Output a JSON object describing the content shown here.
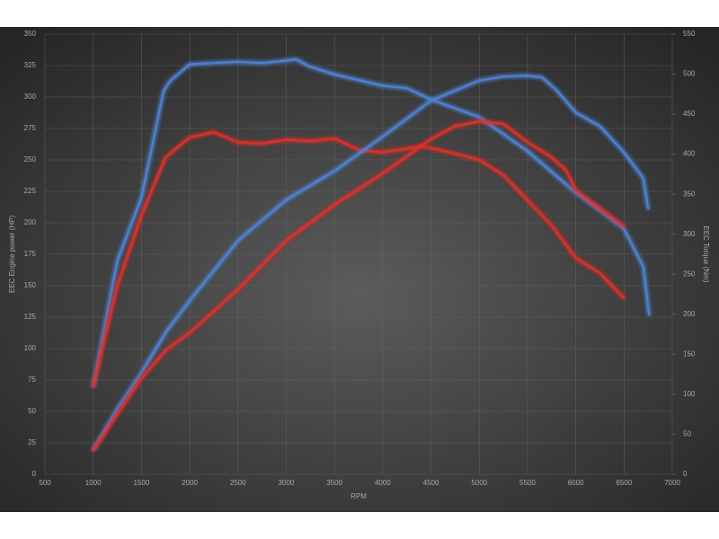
{
  "chart_data": {
    "type": "line",
    "x_label": "RPM",
    "y_label": "EEC Engine power (HP)",
    "y2_label": "EEC Torque (Nm)",
    "xlim": [
      500,
      7000
    ],
    "xticks": [
      500,
      1000,
      1500,
      2000,
      2500,
      3000,
      3500,
      4000,
      4500,
      5000,
      5500,
      6000,
      6500,
      7000
    ],
    "ylim": [
      0,
      350
    ],
    "yticks": [
      0,
      25,
      50,
      75,
      100,
      125,
      150,
      175,
      200,
      225,
      250,
      275,
      300,
      325,
      350
    ],
    "y2lim": [
      0,
      550
    ],
    "y2ticks": [
      0,
      50,
      100,
      150,
      200,
      250,
      300,
      350,
      400,
      450,
      500,
      550
    ],
    "grid": true,
    "series": [
      {
        "color": "#4f86d9",
        "axis": "y",
        "x": [
          1000,
          1250,
          1500,
          1730,
          1800,
          2000,
          2500,
          2750,
          3000,
          3100,
          3250,
          3500,
          4000,
          4250,
          4500,
          5000,
          5500,
          6000,
          6250,
          6500,
          6700,
          6760
        ],
        "values": [
          70,
          170,
          220,
          305,
          313,
          326,
          328,
          327,
          329,
          330,
          324,
          318,
          309,
          307,
          298,
          284,
          257,
          224,
          210,
          195,
          165,
          127
        ]
      },
      {
        "color": "#e0302c",
        "axis": "y",
        "x": [
          1000,
          1250,
          1500,
          1750,
          2000,
          2250,
          2500,
          2750,
          3000,
          3250,
          3500,
          3750,
          4000,
          4250,
          4400,
          4750,
          5000,
          5250,
          5500,
          5750,
          6000,
          6250,
          6500
        ],
        "values": [
          70,
          150,
          206,
          252,
          268,
          272,
          264,
          263,
          266,
          265,
          267,
          258,
          256,
          259,
          261,
          255,
          250,
          238,
          218,
          198,
          172,
          160,
          140
        ]
      },
      {
        "color": "#4f86d9",
        "axis": "y2",
        "x": [
          1000,
          1250,
          1500,
          1750,
          2000,
          2500,
          3000,
          3500,
          4000,
          4500,
          5000,
          5250,
          5500,
          5650,
          5800,
          6000,
          6250,
          6500,
          6700,
          6750
        ],
        "values": [
          31,
          82,
          127,
          177,
          217,
          292,
          343,
          379,
          422,
          467,
          492,
          497,
          498,
          496,
          480,
          452,
          435,
          402,
          370,
          332
        ]
      },
      {
        "color": "#e0302c",
        "axis": "y2",
        "x": [
          1000,
          1250,
          1500,
          1750,
          2000,
          2500,
          3000,
          3500,
          4000,
          4500,
          4750,
          5000,
          5250,
          5500,
          5750,
          5900,
          6000,
          6250,
          6500
        ],
        "values": [
          30,
          75,
          120,
          155,
          177,
          231,
          292,
          337,
          376,
          419,
          435,
          441,
          438,
          415,
          396,
          380,
          355,
          332,
          310
        ]
      }
    ]
  }
}
